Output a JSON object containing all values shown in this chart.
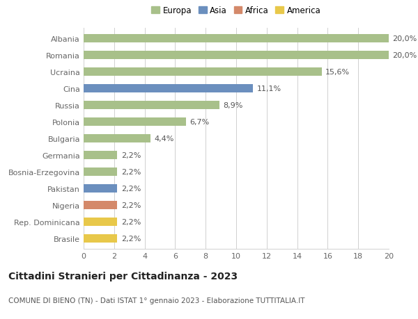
{
  "countries": [
    "Albania",
    "Romania",
    "Ucraina",
    "Cina",
    "Russia",
    "Polonia",
    "Bulgaria",
    "Germania",
    "Bosnia-Erzegovina",
    "Pakistan",
    "Nigeria",
    "Rep. Dominicana",
    "Brasile"
  ],
  "values": [
    20.0,
    20.0,
    15.6,
    11.1,
    8.9,
    6.7,
    4.4,
    2.2,
    2.2,
    2.2,
    2.2,
    2.2,
    2.2
  ],
  "labels": [
    "20,0%",
    "20,0%",
    "15,6%",
    "11,1%",
    "8,9%",
    "6,7%",
    "4,4%",
    "2,2%",
    "2,2%",
    "2,2%",
    "2,2%",
    "2,2%",
    "2,2%"
  ],
  "continents": [
    "Europa",
    "Europa",
    "Europa",
    "Asia",
    "Europa",
    "Europa",
    "Europa",
    "Europa",
    "Europa",
    "Asia",
    "Africa",
    "America",
    "America"
  ],
  "colors": {
    "Europa": "#a8c08a",
    "Asia": "#6b8fbe",
    "Africa": "#d4896a",
    "America": "#e8c84a"
  },
  "xlim": [
    0,
    20
  ],
  "xticks": [
    0,
    2,
    4,
    6,
    8,
    10,
    12,
    14,
    16,
    18,
    20
  ],
  "title": "Cittadini Stranieri per Cittadinanza - 2023",
  "subtitle": "COMUNE DI BIENO (TN) - Dati ISTAT 1° gennaio 2023 - Elaborazione TUTTITALIA.IT",
  "background_color": "#ffffff",
  "bar_height": 0.5,
  "label_fontsize": 8,
  "tick_fontsize": 8,
  "title_fontsize": 10,
  "subtitle_fontsize": 7.5,
  "grid_color": "#d0d0d0",
  "label_color": "#555555",
  "axis_label_color": "#666666"
}
